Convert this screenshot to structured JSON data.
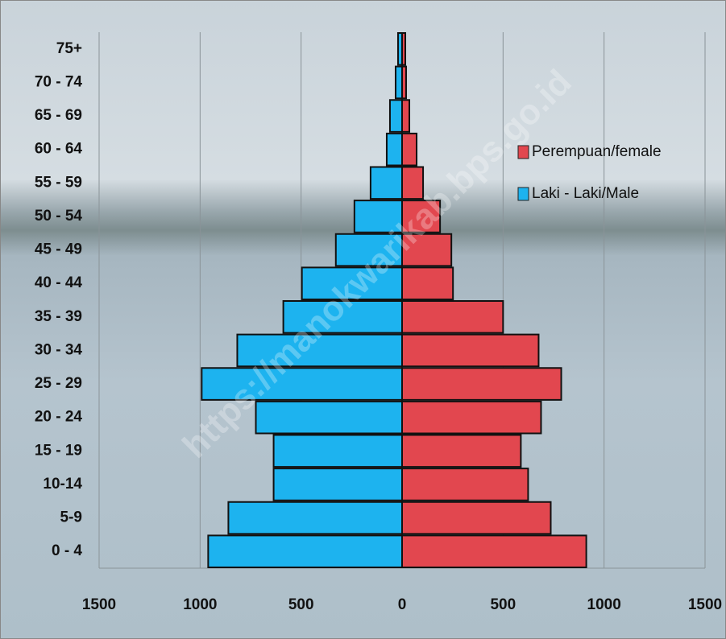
{
  "chart_data": {
    "type": "population-pyramid",
    "watermark": "https://manokwarikab.bps.go.id",
    "categories": [
      "0 - 4",
      "5-9",
      "10-14",
      "15 - 19",
      "20 - 24",
      "25 - 29",
      "30 - 34",
      "35 - 39",
      "40 - 44",
      "45 - 49",
      "50 - 54",
      "55 - 59",
      "60 - 64",
      "65 - 69",
      "70 - 74",
      "75+"
    ],
    "series": [
      {
        "name": "Perempuan/female",
        "color": "#e2474f",
        "side": "right",
        "values": [
          912,
          736,
          624,
          588,
          688,
          788,
          676,
          500,
          252,
          244,
          188,
          104,
          72,
          36,
          20,
          16
        ]
      },
      {
        "name": "Laki - Laki/Male",
        "color": "#1db3ef",
        "side": "left",
        "values": [
          960,
          860,
          636,
          636,
          724,
          992,
          816,
          588,
          496,
          328,
          236,
          156,
          76,
          60,
          32,
          20
        ]
      }
    ],
    "xlim": [
      -1500,
      1500
    ],
    "xticks": [
      {
        "value": -1500,
        "label": "1500"
      },
      {
        "value": -1000,
        "label": "1000"
      },
      {
        "value": -500,
        "label": "500"
      },
      0,
      500,
      1000,
      1500
    ],
    "grid": true
  }
}
